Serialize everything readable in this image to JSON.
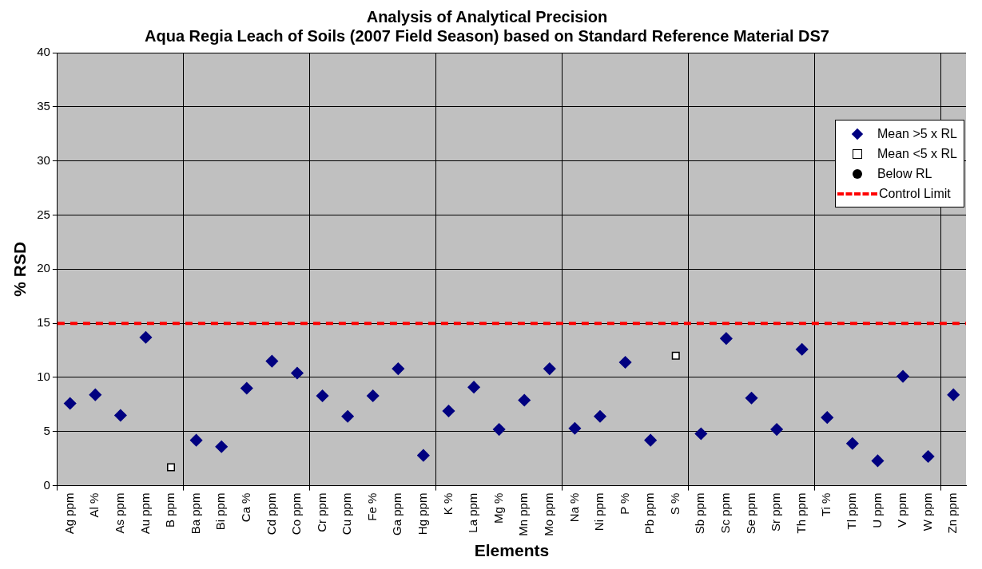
{
  "chart_data": {
    "type": "scatter",
    "title": "Analysis of Analytical Precision",
    "subtitle": "Aqua Regia Leach of Soils (2007 Field Season) based on Standard Reference Material DS7",
    "xlabel": "Elements",
    "ylabel": "% RSD",
    "categories": [
      "Ag ppm",
      "Al %",
      "As ppm",
      "Au ppm",
      "B ppm",
      "Ba ppm",
      "Bi ppm",
      "Ca %",
      "Cd ppm",
      "Co ppm",
      "Cr ppm",
      "Cu ppm",
      "Fe %",
      "Ga ppm",
      "Hg ppm",
      "K %",
      "La ppm",
      "Mg %",
      "Mn ppm",
      "Mo ppm",
      "Na %",
      "Ni ppm",
      "P %",
      "Pb ppm",
      "S %",
      "Sb ppm",
      "Sc ppm",
      "Se ppm",
      "Sr ppm",
      "Th ppm",
      "Ti %",
      "Tl ppm",
      "U ppm",
      "V ppm",
      "W ppm",
      "Zn ppm"
    ],
    "series": [
      {
        "name": "Mean >5 x RL",
        "color": "#000080",
        "marker": "diamond",
        "values": [
          7.6,
          8.4,
          6.5,
          13.7,
          null,
          4.2,
          3.6,
          9.0,
          11.5,
          10.4,
          8.3,
          6.4,
          8.3,
          10.8,
          2.8,
          6.9,
          9.1,
          5.2,
          7.9,
          10.8,
          5.3,
          6.4,
          11.4,
          4.2,
          null,
          4.8,
          13.6,
          8.1,
          5.2,
          12.6,
          6.3,
          3.9,
          2.3,
          10.1,
          2.7,
          8.4
        ]
      },
      {
        "name": "Mean <5 x RL",
        "color": "#ffffff",
        "marker": "square",
        "values": [
          null,
          null,
          null,
          null,
          1.7,
          null,
          null,
          null,
          null,
          null,
          null,
          null,
          null,
          null,
          null,
          null,
          null,
          null,
          null,
          null,
          null,
          null,
          null,
          null,
          12.0,
          null,
          null,
          null,
          null,
          null,
          null,
          null,
          null,
          null,
          null,
          null
        ]
      },
      {
        "name": "Below RL",
        "color": "#000000",
        "marker": "circle",
        "values": [
          null,
          null,
          null,
          null,
          null,
          null,
          null,
          null,
          null,
          null,
          null,
          null,
          null,
          null,
          null,
          null,
          null,
          null,
          null,
          null,
          null,
          null,
          null,
          null,
          null,
          null,
          null,
          null,
          null,
          null,
          null,
          null,
          null,
          null,
          null,
          null
        ]
      }
    ],
    "ref_lines": [
      {
        "axis": "y",
        "value": 15,
        "label": "Control Limit",
        "color": "#ff0000",
        "line_style": "dashed"
      }
    ],
    "ylim": [
      0,
      40
    ],
    "yticks": [
      0,
      5,
      10,
      15,
      20,
      25,
      30,
      35,
      40
    ],
    "grid": true,
    "legend": "top right"
  }
}
